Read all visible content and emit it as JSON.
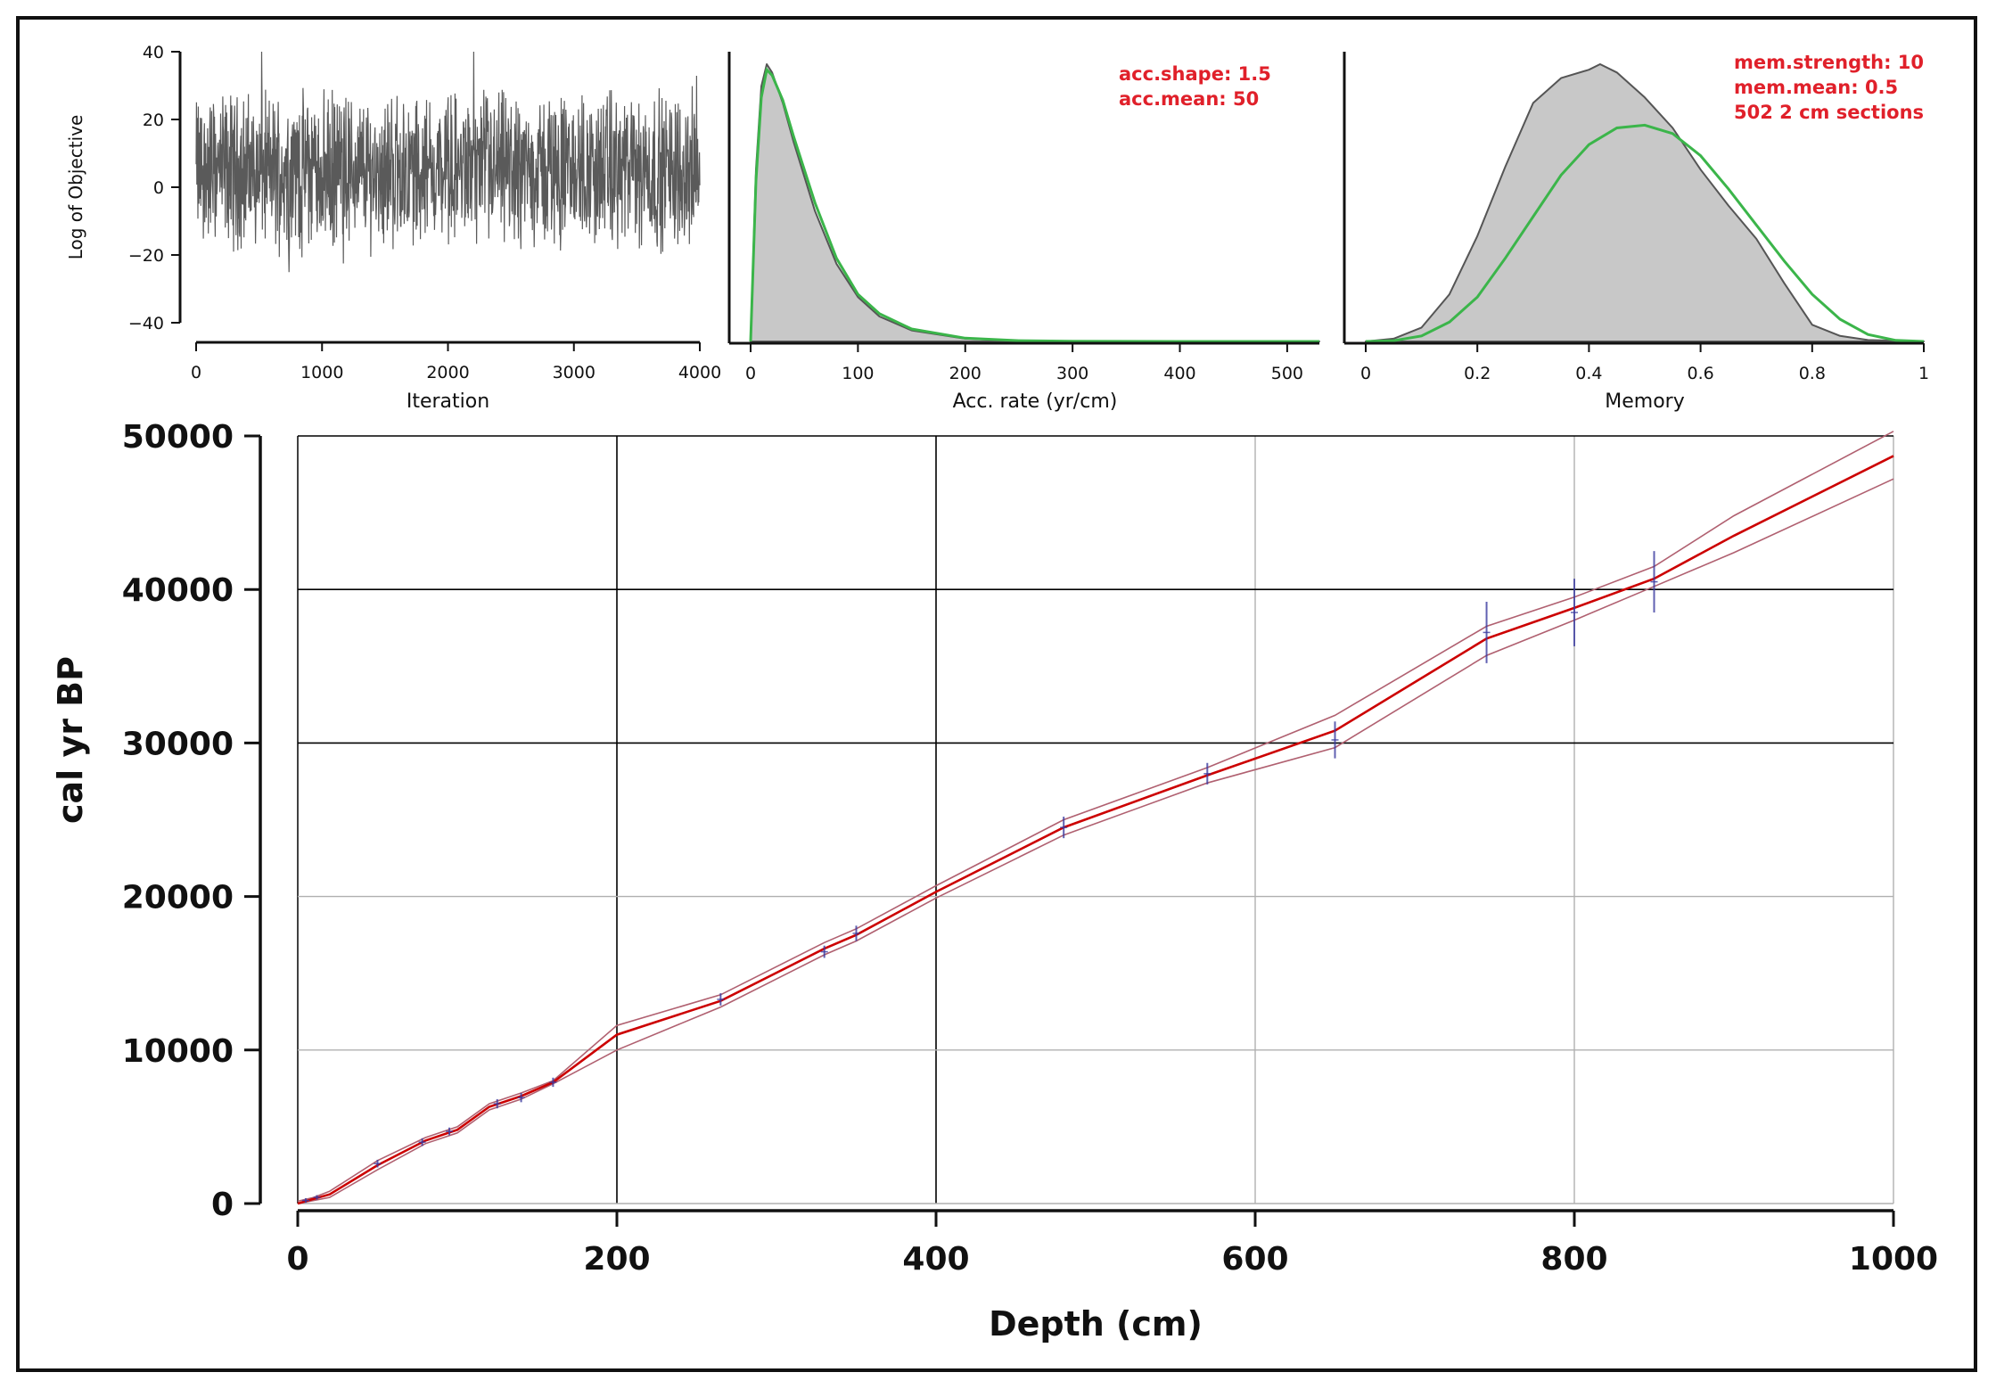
{
  "colors": {
    "posterior_fill": "#c8c8c8",
    "posterior_line": "#555555",
    "prior_line": "#3bb54a",
    "annotation": "#e0202a",
    "trace": "#5a5a5a",
    "model_mean": "#cc0000",
    "model_range": "#b06070",
    "date_marker": "#3a3aa0",
    "grid_dark": "#000000",
    "grid_light": "#b0b0b0"
  },
  "chart_data": [
    {
      "type": "line",
      "name": "iteration-trace",
      "xlabel": "Iteration",
      "ylabel": "Log of Objective",
      "xlim": [
        0,
        4000
      ],
      "ylim": [
        -40,
        40
      ],
      "xticks": [
        0,
        1000,
        2000,
        3000,
        4000
      ],
      "yticks": [
        -40,
        -20,
        0,
        20,
        40
      ],
      "n_iterations": 4000,
      "approx_mean": 5,
      "approx_range": [
        -40,
        40
      ]
    },
    {
      "type": "area",
      "name": "acc-rate-prior-posterior",
      "xlabel": "Acc. rate (yr/cm)",
      "xlim": [
        0,
        530
      ],
      "xticks": [
        0,
        100,
        200,
        300,
        400,
        500
      ],
      "annotations": [
        "acc.shape:  1.5",
        "acc.mean:  50"
      ],
      "posterior": {
        "x": [
          0,
          5,
          10,
          15,
          20,
          30,
          40,
          60,
          80,
          100,
          120,
          150,
          200,
          250,
          300,
          400,
          500,
          530
        ],
        "density": [
          0.0,
          0.62,
          0.92,
          1.0,
          0.97,
          0.86,
          0.72,
          0.47,
          0.28,
          0.16,
          0.09,
          0.04,
          0.01,
          0.003,
          0.001,
          0.0,
          0.0,
          0.0
        ]
      },
      "prior": {
        "x": [
          0,
          5,
          10,
          15,
          20,
          30,
          40,
          60,
          80,
          100,
          120,
          150,
          200,
          250,
          300,
          400,
          500,
          530
        ],
        "density": [
          0.0,
          0.58,
          0.88,
          0.98,
          0.96,
          0.87,
          0.74,
          0.5,
          0.3,
          0.17,
          0.1,
          0.045,
          0.012,
          0.003,
          0.001,
          0.0,
          0.0,
          0.0
        ]
      }
    },
    {
      "type": "area",
      "name": "memory-prior-posterior",
      "xlabel": "Memory",
      "xlim": [
        0,
        1
      ],
      "xticks": [
        0,
        0.2,
        0.4,
        0.6,
        0.8,
        1
      ],
      "annotations": [
        "mem.strength: 10",
        "mem.mean: 0.5",
        "502 2 cm sections"
      ],
      "posterior": {
        "x": [
          0.0,
          0.05,
          0.1,
          0.15,
          0.2,
          0.25,
          0.3,
          0.35,
          0.4,
          0.42,
          0.45,
          0.5,
          0.55,
          0.6,
          0.65,
          0.7,
          0.75,
          0.8,
          0.85,
          0.9,
          1.0
        ],
        "density": [
          0.0,
          0.01,
          0.05,
          0.17,
          0.38,
          0.63,
          0.86,
          0.95,
          0.98,
          1.0,
          0.97,
          0.88,
          0.77,
          0.62,
          0.49,
          0.37,
          0.21,
          0.06,
          0.02,
          0.005,
          0.0
        ]
      },
      "prior": {
        "x": [
          0.0,
          0.05,
          0.1,
          0.15,
          0.2,
          0.25,
          0.3,
          0.35,
          0.4,
          0.45,
          0.5,
          0.55,
          0.6,
          0.65,
          0.7,
          0.75,
          0.8,
          0.85,
          0.9,
          0.95,
          1.0
        ],
        "density": [
          0.0,
          0.003,
          0.02,
          0.07,
          0.16,
          0.3,
          0.45,
          0.6,
          0.71,
          0.77,
          0.78,
          0.75,
          0.67,
          0.55,
          0.42,
          0.29,
          0.17,
          0.08,
          0.025,
          0.004,
          0.0
        ]
      }
    },
    {
      "type": "line",
      "name": "age-depth-model",
      "xlabel": "Depth (cm)",
      "ylabel": "cal yr BP",
      "xlim": [
        0,
        1000
      ],
      "ylim": [
        0,
        50000
      ],
      "xticks": [
        0,
        200,
        400,
        600,
        800,
        1000
      ],
      "yticks": [
        0,
        10000,
        20000,
        30000,
        40000,
        50000
      ],
      "grid": true,
      "depth": [
        0,
        10,
        20,
        50,
        80,
        100,
        120,
        140,
        160,
        200,
        265,
        330,
        350,
        400,
        480,
        570,
        650,
        745,
        800,
        850,
        900,
        1000
      ],
      "mean_age": [
        0,
        300,
        600,
        2500,
        4100,
        4800,
        6300,
        7000,
        7900,
        11000,
        13200,
        16600,
        17500,
        20300,
        24500,
        27900,
        30800,
        36800,
        38800,
        40700,
        43500,
        48700
      ],
      "upper_age": [
        150,
        400,
        800,
        2800,
        4300,
        5000,
        6500,
        7200,
        8000,
        11600,
        13600,
        17000,
        17900,
        20700,
        25000,
        28400,
        31800,
        37600,
        39500,
        41500,
        44800,
        50300
      ],
      "lower_age": [
        0,
        200,
        400,
        2200,
        3900,
        4600,
        6100,
        6800,
        7800,
        10000,
        12800,
        16200,
        17100,
        19900,
        24000,
        27400,
        29700,
        35700,
        38000,
        40200,
        42400,
        47200
      ],
      "dates": [
        {
          "depth": 5,
          "age": 200,
          "err": 150
        },
        {
          "depth": 12,
          "age": 400,
          "err": 150
        },
        {
          "depth": 50,
          "age": 2600,
          "err": 250
        },
        {
          "depth": 78,
          "age": 4000,
          "err": 250
        },
        {
          "depth": 95,
          "age": 4700,
          "err": 250
        },
        {
          "depth": 125,
          "age": 6500,
          "err": 300
        },
        {
          "depth": 140,
          "age": 6900,
          "err": 300
        },
        {
          "depth": 160,
          "age": 7900,
          "err": 300
        },
        {
          "depth": 265,
          "age": 13300,
          "err": 400
        },
        {
          "depth": 330,
          "age": 16400,
          "err": 400
        },
        {
          "depth": 350,
          "age": 17600,
          "err": 500
        },
        {
          "depth": 480,
          "age": 24500,
          "err": 700
        },
        {
          "depth": 570,
          "age": 28000,
          "err": 700
        },
        {
          "depth": 650,
          "age": 30200,
          "err": 1200
        },
        {
          "depth": 745,
          "age": 37200,
          "err": 2000
        },
        {
          "depth": 800,
          "age": 38500,
          "err": 2200
        },
        {
          "depth": 850,
          "age": 40500,
          "err": 2000
        }
      ]
    }
  ]
}
